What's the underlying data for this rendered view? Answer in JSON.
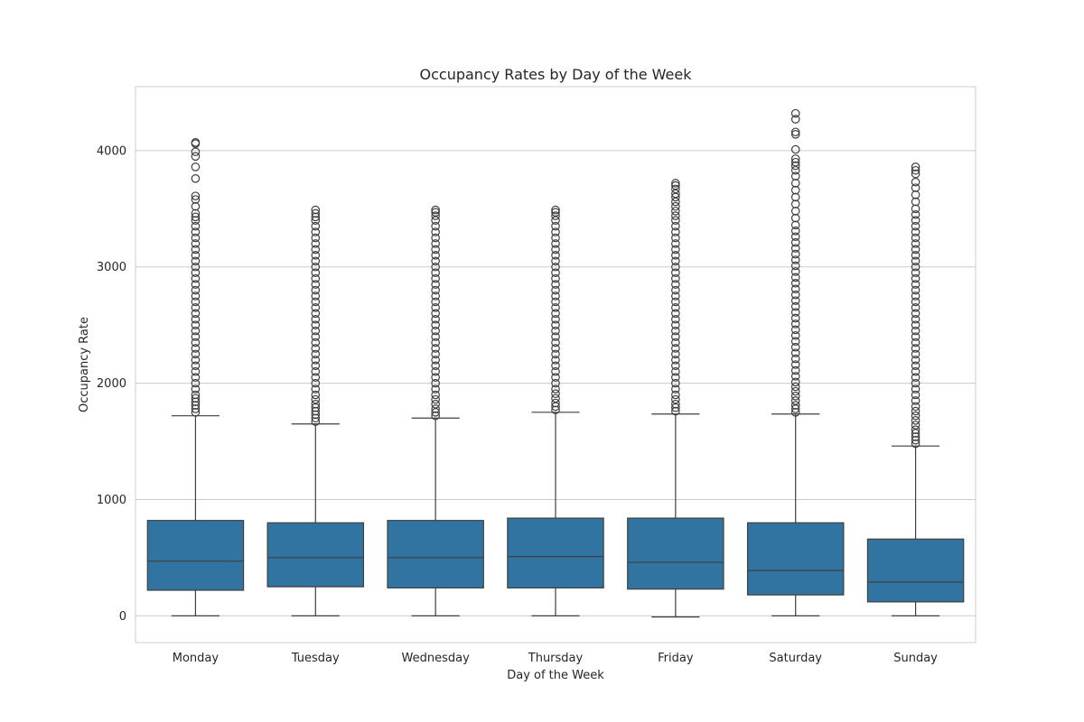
{
  "chart_data": {
    "type": "box",
    "title": "Occupancy Rates by Day of the Week",
    "xlabel": "Day of the Week",
    "ylabel": "Occupancy Rate",
    "ylim": [
      -230,
      4550
    ],
    "yticks": [
      0,
      1000,
      2000,
      3000,
      4000
    ],
    "grid": true,
    "box_color": "#3274a1",
    "categories": [
      "Monday",
      "Tuesday",
      "Wednesday",
      "Thursday",
      "Friday",
      "Saturday",
      "Sunday"
    ],
    "boxes": [
      {
        "category": "Monday",
        "whisker_low": 0,
        "q1": 220,
        "median": 470,
        "q3": 820,
        "whisker_high": 1720,
        "outliers": [
          1750,
          1780,
          1810,
          1840,
          1870,
          1900,
          1950,
          2000,
          2050,
          2100,
          2150,
          2200,
          2250,
          2300,
          2350,
          2400,
          2450,
          2500,
          2550,
          2600,
          2650,
          2700,
          2750,
          2800,
          2850,
          2900,
          2950,
          3000,
          3050,
          3100,
          3150,
          3200,
          3250,
          3300,
          3350,
          3400,
          3430,
          3460,
          3520,
          3580,
          3610,
          3760,
          3860,
          3950,
          3990,
          4060,
          4070
        ]
      },
      {
        "category": "Tuesday",
        "whisker_low": 0,
        "q1": 250,
        "median": 500,
        "q3": 800,
        "whisker_high": 1650,
        "outliers": [
          1670,
          1700,
          1730,
          1760,
          1790,
          1820,
          1860,
          1900,
          1950,
          2000,
          2050,
          2100,
          2150,
          2200,
          2250,
          2300,
          2350,
          2400,
          2450,
          2500,
          2550,
          2600,
          2650,
          2700,
          2750,
          2800,
          2850,
          2900,
          2950,
          3000,
          3050,
          3100,
          3150,
          3200,
          3250,
          3300,
          3350,
          3400,
          3430,
          3460,
          3490
        ]
      },
      {
        "category": "Wednesday",
        "whisker_low": 0,
        "q1": 240,
        "median": 500,
        "q3": 820,
        "whisker_high": 1700,
        "outliers": [
          1720,
          1750,
          1780,
          1820,
          1860,
          1900,
          1950,
          2000,
          2050,
          2100,
          2150,
          2200,
          2250,
          2300,
          2350,
          2400,
          2450,
          2500,
          2550,
          2600,
          2650,
          2700,
          2750,
          2800,
          2850,
          2900,
          2950,
          3000,
          3050,
          3100,
          3150,
          3200,
          3250,
          3300,
          3350,
          3400,
          3440,
          3470,
          3490
        ]
      },
      {
        "category": "Thursday",
        "whisker_low": 0,
        "q1": 240,
        "median": 510,
        "q3": 840,
        "whisker_high": 1750,
        "outliers": [
          1770,
          1800,
          1830,
          1870,
          1910,
          1950,
          2000,
          2050,
          2100,
          2150,
          2200,
          2250,
          2300,
          2350,
          2400,
          2450,
          2500,
          2550,
          2600,
          2650,
          2700,
          2750,
          2800,
          2850,
          2900,
          2950,
          3000,
          3050,
          3100,
          3150,
          3200,
          3250,
          3300,
          3350,
          3400,
          3440,
          3470,
          3490
        ]
      },
      {
        "category": "Friday",
        "whisker_low": -10,
        "q1": 230,
        "median": 460,
        "q3": 840,
        "whisker_high": 1735,
        "outliers": [
          1760,
          1790,
          1820,
          1860,
          1900,
          1950,
          2000,
          2050,
          2100,
          2150,
          2200,
          2250,
          2300,
          2350,
          2400,
          2450,
          2500,
          2550,
          2600,
          2650,
          2700,
          2750,
          2800,
          2850,
          2900,
          2950,
          3000,
          3050,
          3100,
          3150,
          3200,
          3250,
          3300,
          3350,
          3400,
          3440,
          3480,
          3520,
          3560,
          3600,
          3630,
          3670,
          3700,
          3720
        ]
      },
      {
        "category": "Saturday",
        "whisker_low": 0,
        "q1": 180,
        "median": 390,
        "q3": 800,
        "whisker_high": 1735,
        "outliers": [
          1750,
          1780,
          1810,
          1850,
          1890,
          1930,
          1970,
          2010,
          2060,
          2110,
          2160,
          2210,
          2260,
          2310,
          2360,
          2410,
          2460,
          2510,
          2560,
          2610,
          2660,
          2710,
          2760,
          2810,
          2860,
          2910,
          2960,
          3010,
          3060,
          3110,
          3160,
          3210,
          3260,
          3310,
          3360,
          3420,
          3480,
          3540,
          3600,
          3660,
          3720,
          3780,
          3830,
          3870,
          3900,
          3930,
          4010,
          4140,
          4160,
          4270,
          4320
        ]
      },
      {
        "category": "Sunday",
        "whisker_low": 0,
        "q1": 120,
        "median": 290,
        "q3": 660,
        "whisker_high": 1460,
        "outliers": [
          1480,
          1510,
          1540,
          1570,
          1600,
          1640,
          1680,
          1720,
          1760,
          1800,
          1850,
          1900,
          1950,
          2000,
          2050,
          2100,
          2150,
          2200,
          2250,
          2300,
          2350,
          2400,
          2450,
          2500,
          2550,
          2600,
          2650,
          2700,
          2750,
          2800,
          2850,
          2900,
          2950,
          3000,
          3050,
          3100,
          3150,
          3200,
          3250,
          3300,
          3350,
          3400,
          3450,
          3500,
          3560,
          3620,
          3680,
          3730,
          3800,
          3830,
          3860
        ]
      }
    ]
  }
}
